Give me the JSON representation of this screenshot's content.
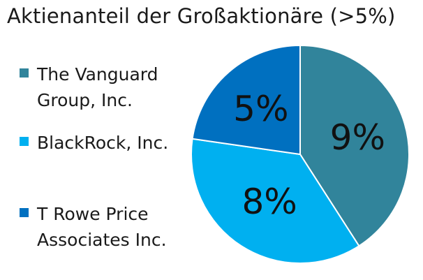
{
  "chart_data": {
    "type": "pie",
    "title": "Aktienanteil der Großaktionäre (>5%)",
    "categories": [
      "The Vanguard Group, Inc.",
      "BlackRock, Inc.",
      "T Rowe Price Associates Inc."
    ],
    "values": [
      9,
      8,
      5
    ],
    "value_labels": [
      "9%",
      "8%",
      "5%"
    ],
    "colors": [
      "#31849b",
      "#00b0f0",
      "#0070c0"
    ],
    "legend_position": "left"
  }
}
